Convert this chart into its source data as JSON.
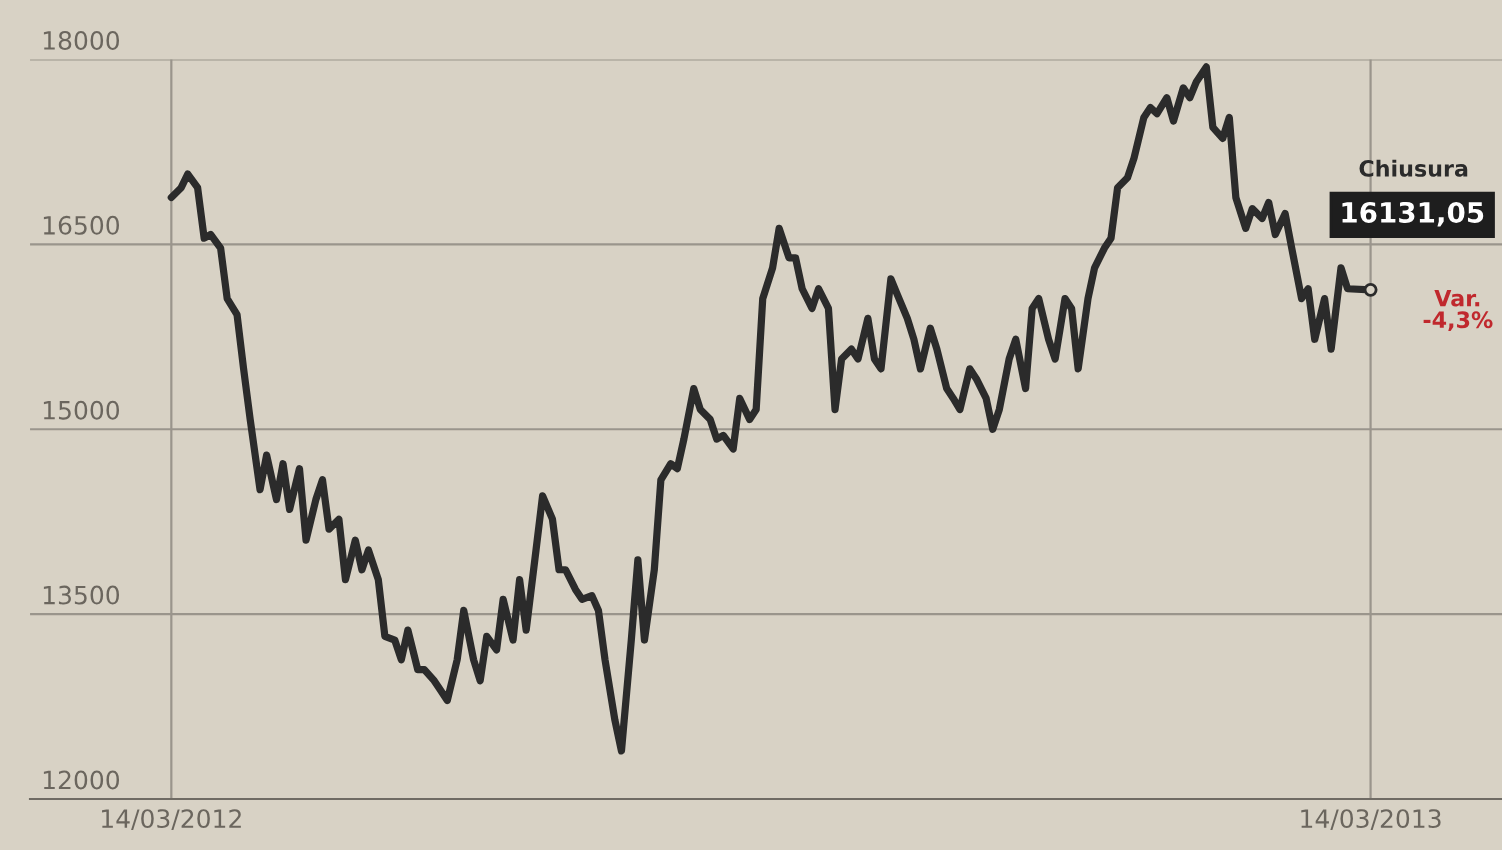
{
  "chart_data": {
    "type": "line",
    "x": [
      "2012-03-14",
      "2012-03-17",
      "2012-03-19",
      "2012-03-22",
      "2012-03-24",
      "2012-03-26",
      "2012-03-29",
      "2012-03-31",
      "2012-04-03",
      "2012-04-05",
      "2012-04-07",
      "2012-04-10",
      "2012-04-12",
      "2012-04-15",
      "2012-04-17",
      "2012-04-19",
      "2012-04-22",
      "2012-04-24",
      "2012-04-27",
      "2012-04-29",
      "2012-05-01",
      "2012-05-04",
      "2012-05-06",
      "2012-05-09",
      "2012-05-11",
      "2012-05-13",
      "2012-05-16",
      "2012-05-18",
      "2012-05-21",
      "2012-05-23",
      "2012-05-25",
      "2012-05-28",
      "2012-05-30",
      "2012-06-02",
      "2012-06-04",
      "2012-06-06",
      "2012-06-09",
      "2012-06-11",
      "2012-06-14",
      "2012-06-16",
      "2012-06-18",
      "2012-06-21",
      "2012-06-23",
      "2012-06-26",
      "2012-06-28",
      "2012-06-30",
      "2012-07-03",
      "2012-07-05",
      "2012-07-08",
      "2012-07-10",
      "2012-07-12",
      "2012-07-15",
      "2012-07-17",
      "2012-07-20",
      "2012-07-22",
      "2012-07-24",
      "2012-07-27",
      "2012-07-29",
      "2012-08-01",
      "2012-08-03",
      "2012-08-05",
      "2012-08-08",
      "2012-08-10",
      "2012-08-13",
      "2012-08-15",
      "2012-08-17",
      "2012-08-20",
      "2012-08-22",
      "2012-08-25",
      "2012-08-27",
      "2012-08-29",
      "2012-09-01",
      "2012-09-03",
      "2012-09-06",
      "2012-09-08",
      "2012-09-10",
      "2012-09-13",
      "2012-09-15",
      "2012-09-18",
      "2012-09-20",
      "2012-09-22",
      "2012-09-25",
      "2012-09-27",
      "2012-09-30",
      "2012-10-02",
      "2012-10-04",
      "2012-10-07",
      "2012-10-09",
      "2012-10-12",
      "2012-10-14",
      "2012-10-16",
      "2012-10-19",
      "2012-10-21",
      "2012-10-24",
      "2012-10-26",
      "2012-10-28",
      "2012-10-31",
      "2012-11-02",
      "2012-11-05",
      "2012-11-07",
      "2012-11-09",
      "2012-11-12",
      "2012-11-14",
      "2012-11-17",
      "2012-11-19",
      "2012-11-21",
      "2012-11-24",
      "2012-11-26",
      "2012-11-29",
      "2012-12-01",
      "2012-12-03",
      "2012-12-06",
      "2012-12-08",
      "2012-12-11",
      "2012-12-13",
      "2012-12-15",
      "2012-12-18",
      "2012-12-20",
      "2012-12-23",
      "2012-12-25",
      "2012-12-27",
      "2012-12-30",
      "2013-01-01",
      "2013-01-04",
      "2013-01-06",
      "2013-01-08",
      "2013-01-11",
      "2013-01-13",
      "2013-01-16",
      "2013-01-18",
      "2013-01-20",
      "2013-01-23",
      "2013-01-25",
      "2013-01-28",
      "2013-01-30",
      "2013-02-01",
      "2013-02-04",
      "2013-02-06",
      "2013-02-09",
      "2013-02-11",
      "2013-02-13",
      "2013-02-16",
      "2013-02-18",
      "2013-02-21",
      "2013-02-23",
      "2013-02-25",
      "2013-02-28",
      "2013-03-02",
      "2013-03-05",
      "2013-03-07",
      "2013-03-14"
    ],
    "series": [
      {
        "color": "#2b2b2b",
        "values": [
          16880,
          16960,
          17070,
          16960,
          16550,
          16580,
          16470,
          16060,
          15930,
          15490,
          15080,
          14510,
          14790,
          14430,
          14720,
          14350,
          14680,
          14100,
          14430,
          14590,
          14190,
          14270,
          13780,
          14100,
          13860,
          14020,
          13780,
          13320,
          13290,
          13130,
          13370,
          13050,
          13050,
          12960,
          12880,
          12800,
          13130,
          13530,
          13130,
          12960,
          13320,
          13210,
          13620,
          13290,
          13780,
          13370,
          14020,
          14460,
          14270,
          13860,
          13860,
          13700,
          13620,
          13650,
          13530,
          13130,
          12640,
          12390,
          13290,
          13940,
          13290,
          13860,
          14590,
          14720,
          14680,
          14920,
          15330,
          15160,
          15080,
          14920,
          14950,
          14840,
          15250,
          15080,
          15160,
          16060,
          16310,
          16630,
          16390,
          16390,
          16140,
          15980,
          16140,
          15980,
          15160,
          15570,
          15650,
          15570,
          15900,
          15570,
          15490,
          16220,
          16090,
          15900,
          15730,
          15490,
          15820,
          15650,
          15330,
          15250,
          15160,
          15490,
          15410,
          15250,
          15000,
          15160,
          15570,
          15730,
          15330,
          15980,
          16060,
          15730,
          15570,
          16060,
          15980,
          15490,
          16060,
          16310,
          16470,
          16550,
          16960,
          17040,
          17200,
          17530,
          17610,
          17560,
          17690,
          17500,
          17770,
          17690,
          17820,
          17940,
          17450,
          17360,
          17530,
          16880,
          16630,
          16790,
          16710,
          16840,
          16580,
          16750,
          16470,
          16060,
          16140,
          15730,
          16060,
          15650,
          16310,
          16140,
          16131.05
        ]
      }
    ],
    "xlim": [
      "2012-01-31",
      "2013-04-23"
    ],
    "xticks": [
      {
        "value": "2012-03-14",
        "label": "14/03/2012"
      },
      {
        "value": "2013-03-14",
        "label": "14/03/2013"
      }
    ],
    "ylim": [
      12000,
      18000
    ],
    "yticks": [
      12000,
      13500,
      15000,
      16500,
      18000
    ],
    "grid": true,
    "line_style": "solid",
    "annotations": [
      {
        "text": "16131,05",
        "x": "2013-03-14",
        "y": 16131.05
      },
      "Chiusura",
      "Var.\n-4,3%"
    ]
  }
}
